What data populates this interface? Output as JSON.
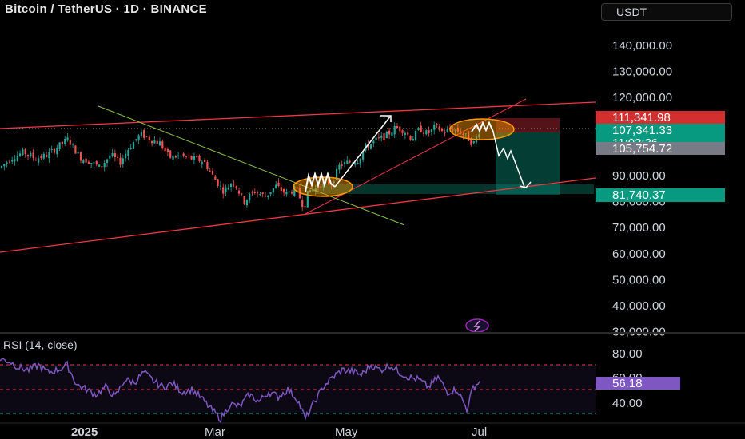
{
  "header": {
    "title": "Bitcoin / TetherUS · 1D · BINANCE",
    "currency": "USDT"
  },
  "rsi_panel": {
    "label": "RSI (14, close)",
    "ticks": [
      "80.00",
      "60.00",
      "40.00"
    ],
    "current_value": "56.18"
  },
  "colors": {
    "background": "#000000",
    "bull": "#26a69a",
    "bear": "#ef5350",
    "channel": "#f23645",
    "trendline": "#8bc34a",
    "rsi_line": "#7e57c2",
    "highlight": "#ff9800",
    "drawing": "#ffffff"
  },
  "chart_data": {
    "type": "candlestick",
    "title": "Bitcoin / TetherUS · 1D · BINANCE",
    "price_axis": {
      "ticks": [
        "140,000.00",
        "130,000.00",
        "120,000.00",
        "90,000.00",
        "80,000.00",
        "70,000.00",
        "60,000.00",
        "50,000.00",
        "40,000.00",
        "30,000.00"
      ],
      "range": [
        28000,
        148000
      ]
    },
    "x_axis": {
      "ticks": [
        "2025",
        "Mar",
        "May",
        "Jul"
      ]
    },
    "price_tags": [
      {
        "label": "111,341.98",
        "value": 111341.98,
        "kind": "stop"
      },
      {
        "label": "107,341.33",
        "value": 107341.33,
        "kind": "entry"
      },
      {
        "label": "11:03:36",
        "value": 104600,
        "kind": "countdown"
      },
      {
        "label": "105,754.72",
        "value": 105754.72,
        "kind": "last"
      },
      {
        "label": "81,740.37",
        "value": 81740.37,
        "kind": "target"
      }
    ],
    "rsi": {
      "period": 14,
      "source": "close",
      "upper": 70,
      "mid": 50,
      "lower": 30,
      "last": 56.18
    }
  }
}
